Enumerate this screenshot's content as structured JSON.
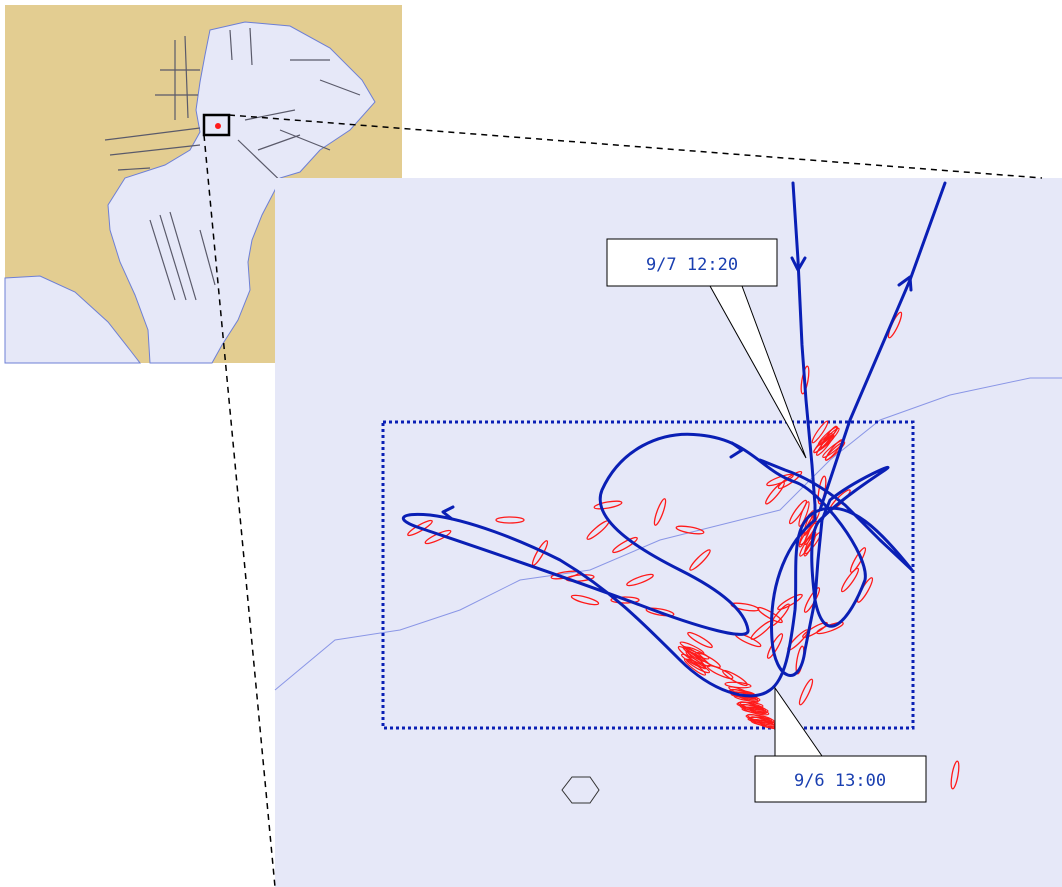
{
  "inset_map": {
    "land_color": "#e3cd91",
    "water_color": "#e6e8f8",
    "locator_box_color": "#000000"
  },
  "detail_map": {
    "water_color": "#e6e8f8",
    "track_color": "#0a1fb5",
    "mark_color": "#ff1a1a",
    "analysis_box_color": "#0a1fb5",
    "fairway_line_color": "#8a96e6"
  },
  "callouts": {
    "start": {
      "label": "9/6 13:00"
    },
    "end": {
      "label": "9/7 12:20"
    }
  }
}
